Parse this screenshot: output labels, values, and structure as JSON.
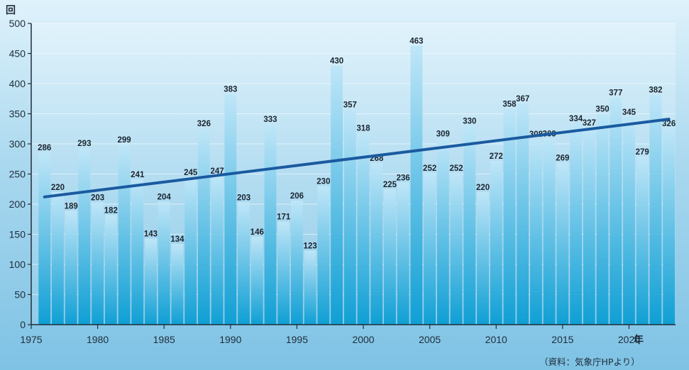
{
  "chart_data": {
    "type": "bar",
    "y_unit": "回",
    "x_unit": "年",
    "source": "（資料：気象庁HPより）",
    "x": [
      1976,
      1977,
      1978,
      1979,
      1980,
      1981,
      1982,
      1983,
      1984,
      1985,
      1986,
      1987,
      1988,
      1989,
      1990,
      1991,
      1992,
      1993,
      1994,
      1995,
      1996,
      1997,
      1998,
      1999,
      2000,
      2001,
      2002,
      2003,
      2004,
      2005,
      2006,
      2007,
      2008,
      2009,
      2010,
      2011,
      2012,
      2013,
      2014,
      2015,
      2016,
      2017,
      2018,
      2019,
      2020,
      2021,
      2022,
      2023
    ],
    "values": [
      286,
      220,
      189,
      293,
      203,
      182,
      299,
      241,
      143,
      204,
      134,
      245,
      326,
      247,
      383,
      203,
      146,
      333,
      171,
      206,
      123,
      230,
      430,
      357,
      318,
      268,
      225,
      236,
      463,
      252,
      309,
      252,
      330,
      220,
      272,
      358,
      367,
      308,
      309,
      269,
      334,
      327,
      350,
      377,
      345,
      279,
      382,
      326
    ],
    "xlim": [
      1975,
      2023.5
    ],
    "ylim": [
      0,
      500
    ],
    "y_ticks": [
      0,
      50,
      100,
      150,
      200,
      250,
      300,
      350,
      400,
      450,
      500
    ],
    "x_ticks": [
      1975,
      1980,
      1985,
      1990,
      1995,
      2000,
      2005,
      2010,
      2015,
      2020
    ],
    "trend": {
      "x_start": 1976,
      "y_start": 212,
      "x_end": 2023,
      "y_end": 341,
      "color": "#1a5aa0"
    },
    "bar_color_top": "#bfe6f8",
    "bar_color_bottom": "#0f9fd4",
    "grid": true,
    "legend": "none"
  }
}
